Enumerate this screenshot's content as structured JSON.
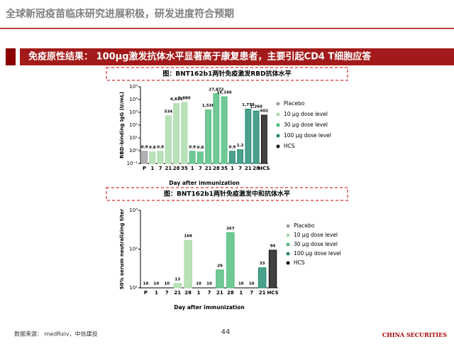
{
  "header": {
    "title": "全球新冠疫苗临床研究进展积极，研发进度符合预期"
  },
  "banner": {
    "text": "免疫原性结果： 100μg激发抗体水平显著高于康复患者，主要引起CD4 T细胞应答"
  },
  "chart_data": [
    {
      "type": "bar",
      "title": "图：BNT162b1两针免疫激发RBD抗体水平",
      "ylabel": "RBD-binding IgG (U/mL)",
      "xlabel": "Day after immunization",
      "log_scale": true,
      "legend": "right",
      "categories": [
        "P",
        "1",
        "7",
        "21",
        "28",
        "35",
        "1",
        "7",
        "21",
        "28",
        "35",
        "1",
        "7",
        "21",
        "28",
        "HCS"
      ],
      "ylim": [
        0.1,
        100000
      ],
      "yticks": [
        {
          "value": 0.1,
          "label": "10⁻¹"
        },
        {
          "value": 1,
          "label": "10⁰"
        },
        {
          "value": 10,
          "label": "10¹"
        },
        {
          "value": 100,
          "label": "10²"
        },
        {
          "value": 1000,
          "label": "10³"
        },
        {
          "value": 10000,
          "label": "10⁴"
        },
        {
          "value": 100000,
          "label": "10⁵"
        }
      ],
      "series": [
        {
          "name": "Placebo",
          "color": "#9e9e9e",
          "values": [
            0.9,
            null,
            null,
            null,
            null,
            null,
            null,
            null,
            null,
            null,
            null,
            null,
            null,
            null,
            null,
            null
          ],
          "value_labels": [
            "0.9",
            null,
            null,
            null,
            null,
            null,
            null,
            null,
            null,
            null,
            null,
            null,
            null,
            null,
            null,
            null
          ]
        },
        {
          "name": "10 μg dose level",
          "color": "#a8dba8",
          "values": [
            null,
            0.8,
            0.9,
            534,
            4813,
            5880,
            null,
            null,
            null,
            null,
            null,
            null,
            null,
            null,
            null,
            null
          ],
          "value_labels": [
            null,
            "0.8",
            "0.9",
            "534",
            "4,813",
            "5,880",
            null,
            null,
            null,
            null,
            null,
            null,
            null,
            null,
            null,
            null
          ]
        },
        {
          "name": "30 μg dose level",
          "color": "#4dbb7a",
          "values": [
            null,
            null,
            null,
            null,
            null,
            null,
            0.9,
            0.8,
            1536,
            27872,
            16166,
            null,
            null,
            null,
            null,
            null
          ],
          "value_labels": [
            null,
            null,
            null,
            null,
            null,
            null,
            "0.9",
            "0.8",
            "1,536",
            "27,872",
            "16,166",
            null,
            null,
            null,
            null,
            null
          ]
        },
        {
          "name": "100 μg dose level",
          "color": "#1f8a70",
          "values": [
            null,
            null,
            null,
            null,
            null,
            null,
            null,
            null,
            null,
            null,
            null,
            0.9,
            1.2,
            1778,
            1260,
            null
          ],
          "value_labels": [
            null,
            null,
            null,
            null,
            null,
            null,
            null,
            null,
            null,
            null,
            null,
            "0.9",
            "1.2",
            "1,778",
            "1,260",
            null
          ]
        },
        {
          "name": "HCS",
          "color": "#111111",
          "values": [
            null,
            null,
            null,
            null,
            null,
            null,
            null,
            null,
            null,
            null,
            null,
            null,
            null,
            null,
            null,
            602
          ],
          "value_labels": [
            null,
            null,
            null,
            null,
            null,
            null,
            null,
            null,
            null,
            null,
            null,
            null,
            null,
            null,
            null,
            "602"
          ]
        }
      ]
    },
    {
      "type": "bar",
      "title": "图：BNT162b1两针免疫激发中和抗体水平",
      "ylabel": "50% serum neutralizing titer",
      "xlabel": "Day after immunization",
      "log_scale": true,
      "legend": "right",
      "categories": [
        "P",
        "1",
        "7",
        "21",
        "28",
        "1",
        "7",
        "21",
        "28",
        "1",
        "7",
        "21",
        "HCS"
      ],
      "ylim": [
        10,
        1000
      ],
      "yticks": [
        {
          "value": 10,
          "label": "10¹"
        },
        {
          "value": 100,
          "label": "10²"
        },
        {
          "value": 1000,
          "label": "10³"
        }
      ],
      "series": [
        {
          "name": "Placebo",
          "color": "#9e9e9e",
          "values": [
            10,
            null,
            null,
            null,
            null,
            null,
            null,
            null,
            null,
            null,
            null,
            null,
            null
          ]
        },
        {
          "name": "10 μg dose level",
          "color": "#a8dba8",
          "values": [
            null,
            10,
            10,
            13,
            168,
            null,
            null,
            null,
            null,
            null,
            null,
            null,
            null
          ]
        },
        {
          "name": "30 μg dose level",
          "color": "#4dbb7a",
          "values": [
            null,
            null,
            null,
            null,
            null,
            10,
            10,
            29,
            267,
            null,
            null,
            null,
            null
          ]
        },
        {
          "name": "100 μg dose level",
          "color": "#1f8a70",
          "values": [
            null,
            null,
            null,
            null,
            null,
            null,
            null,
            null,
            null,
            10,
            10,
            33,
            null
          ]
        },
        {
          "name": "HCS",
          "color": "#111111",
          "values": [
            null,
            null,
            null,
            null,
            null,
            null,
            null,
            null,
            null,
            null,
            null,
            null,
            94
          ]
        }
      ]
    }
  ],
  "footer": {
    "source": "数据来源： medRxiv，中信建投",
    "page": "44",
    "logo": "CHINA SECURITIES"
  }
}
